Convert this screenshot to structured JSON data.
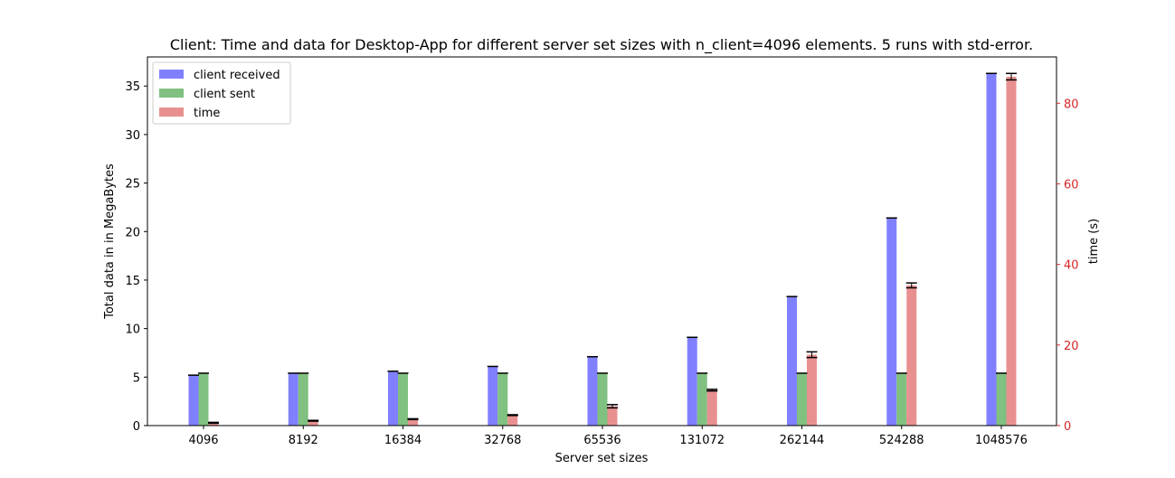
{
  "chart_data": {
    "type": "bar",
    "title": "Client: Time and data for Desktop-App for different server set sizes with n_client=4096 elements. 5 runs with std-error.",
    "xlabel": "Server set sizes",
    "ylabel": "Total data in in MegaBytes",
    "y2label": "time (s)",
    "categories": [
      "4096",
      "8192",
      "16384",
      "32768",
      "65536",
      "131072",
      "262144",
      "524288",
      "1048576"
    ],
    "ylim": [
      0,
      38
    ],
    "y2lim": [
      0,
      91.5
    ],
    "yticks": [
      0,
      5,
      10,
      15,
      20,
      25,
      30,
      35
    ],
    "y2ticks": [
      0,
      20,
      40,
      60,
      80
    ],
    "legend_position": "top-left",
    "grid": false,
    "series": [
      {
        "name": "client received",
        "axis": "left",
        "color": "#8080ff",
        "values": [
          5.2,
          5.4,
          5.6,
          6.1,
          7.1,
          9.1,
          13.3,
          21.4,
          36.3
        ]
      },
      {
        "name": "client sent",
        "axis": "left",
        "color": "#80c080",
        "values": [
          5.4,
          5.4,
          5.4,
          5.4,
          5.4,
          5.4,
          5.4,
          5.4,
          5.4
        ]
      },
      {
        "name": "time",
        "axis": "right",
        "color": "#e89090",
        "values": [
          0.7,
          1.2,
          1.6,
          2.6,
          4.8,
          8.8,
          17.6,
          34.8,
          86.6
        ],
        "errors": [
          0.1,
          0.1,
          0.1,
          0.1,
          0.4,
          0.2,
          0.7,
          0.6,
          0.8
        ]
      }
    ],
    "right_axis_color": "#d62728"
  }
}
